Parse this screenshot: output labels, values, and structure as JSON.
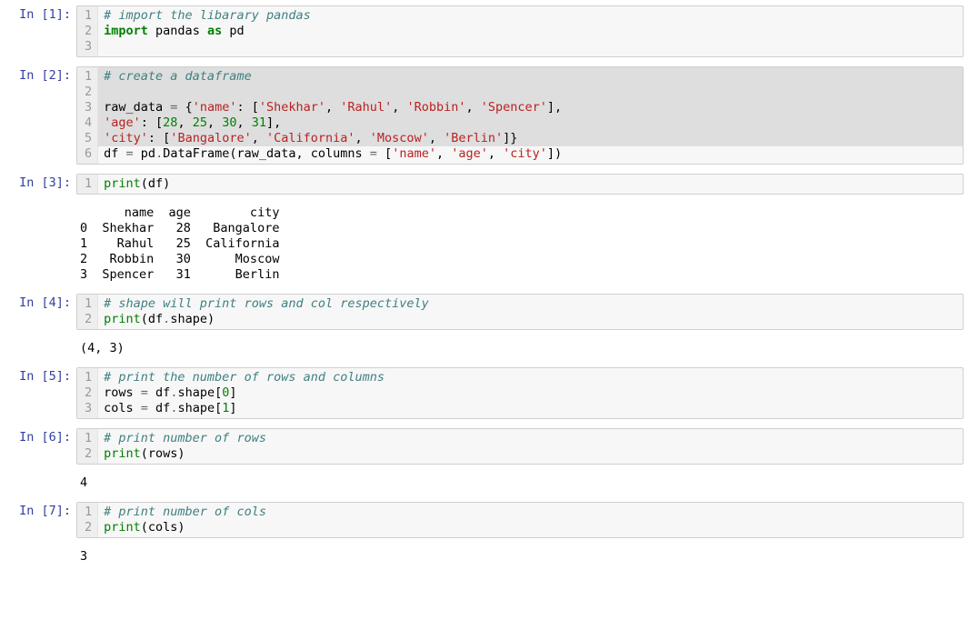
{
  "colors": {
    "prompt": "#303f9f",
    "gutter_bg": "#eeeeee",
    "gutter_fg": "#999999",
    "code_bg": "#f7f7f7",
    "code_bg_selected": "#dedede",
    "border": "#cfcfcf",
    "comment": "#408080",
    "keyword": "#008000",
    "string": "#ba2121",
    "number": "#008000"
  },
  "cells": [
    {
      "id": "c1",
      "prompt": "In [1]:",
      "selected": false,
      "gutter": [
        "1",
        "2",
        "3"
      ],
      "tokens": [
        [
          [
            "cm",
            "# import the libarary pandas"
          ]
        ],
        [
          [
            "kw",
            "import"
          ],
          [
            "nn",
            " pandas "
          ],
          [
            "kw",
            "as"
          ],
          [
            "nn",
            " pd"
          ]
        ],
        [
          [
            "nn",
            ""
          ]
        ]
      ]
    },
    {
      "id": "c2",
      "prompt": "In [2]:",
      "selected": true,
      "gutter": [
        "1",
        "2",
        "3",
        "4",
        "5",
        "6"
      ],
      "last_unselected": true,
      "tokens": [
        [
          [
            "cm",
            "# create a dataframe"
          ]
        ],
        [
          [
            "nn",
            ""
          ]
        ],
        [
          [
            "nn",
            "raw_data "
          ],
          [
            "op",
            "="
          ],
          [
            "nn",
            " {"
          ],
          [
            "str",
            "'name'"
          ],
          [
            "nn",
            ": ["
          ],
          [
            "str",
            "'Shekhar'"
          ],
          [
            "nn",
            ", "
          ],
          [
            "str",
            "'Rahul'"
          ],
          [
            "nn",
            ", "
          ],
          [
            "str",
            "'Robbin'"
          ],
          [
            "nn",
            ", "
          ],
          [
            "str",
            "'Spencer'"
          ],
          [
            "nn",
            "],"
          ]
        ],
        [
          [
            "str",
            "'age'"
          ],
          [
            "nn",
            ": ["
          ],
          [
            "num",
            "28"
          ],
          [
            "nn",
            ", "
          ],
          [
            "num",
            "25"
          ],
          [
            "nn",
            ", "
          ],
          [
            "num",
            "30"
          ],
          [
            "nn",
            ", "
          ],
          [
            "num",
            "31"
          ],
          [
            "nn",
            "],"
          ]
        ],
        [
          [
            "str",
            "'city'"
          ],
          [
            "nn",
            ": ["
          ],
          [
            "str",
            "'Bangalore'"
          ],
          [
            "nn",
            ", "
          ],
          [
            "str",
            "'California'"
          ],
          [
            "nn",
            ", "
          ],
          [
            "str",
            "'Moscow'"
          ],
          [
            "nn",
            ", "
          ],
          [
            "str",
            "'Berlin'"
          ],
          [
            "nn",
            "]}"
          ]
        ],
        [
          [
            "nn",
            "df "
          ],
          [
            "op",
            "="
          ],
          [
            "nn",
            " pd"
          ],
          [
            "op",
            "."
          ],
          [
            "nn",
            "DataFrame(raw_data, columns "
          ],
          [
            "op",
            "="
          ],
          [
            "nn",
            " ["
          ],
          [
            "str",
            "'name'"
          ],
          [
            "nn",
            ", "
          ],
          [
            "str",
            "'age'"
          ],
          [
            "nn",
            ", "
          ],
          [
            "str",
            "'city'"
          ],
          [
            "nn",
            "])"
          ]
        ]
      ]
    },
    {
      "id": "c3",
      "prompt": "In [3]:",
      "selected": false,
      "gutter": [
        "1"
      ],
      "tokens": [
        [
          [
            "fn",
            "print"
          ],
          [
            "nn",
            "(df)"
          ]
        ]
      ],
      "output": "      name  age        city\n0  Shekhar   28   Bangalore\n1    Rahul   25  California\n2   Robbin   30      Moscow\n3  Spencer   31      Berlin"
    },
    {
      "id": "c4",
      "prompt": "In [4]:",
      "selected": false,
      "gutter": [
        "1",
        "2"
      ],
      "tokens": [
        [
          [
            "cm",
            "# shape will print rows and col respectively"
          ]
        ],
        [
          [
            "fn",
            "print"
          ],
          [
            "nn",
            "(df"
          ],
          [
            "op",
            "."
          ],
          [
            "nn",
            "shape)"
          ]
        ]
      ],
      "output": "(4, 3)"
    },
    {
      "id": "c5",
      "prompt": "In [5]:",
      "selected": false,
      "gutter": [
        "1",
        "2",
        "3"
      ],
      "tokens": [
        [
          [
            "cm",
            "# print the number of rows and columns"
          ]
        ],
        [
          [
            "nn",
            "rows "
          ],
          [
            "op",
            "="
          ],
          [
            "nn",
            " df"
          ],
          [
            "op",
            "."
          ],
          [
            "nn",
            "shape["
          ],
          [
            "num",
            "0"
          ],
          [
            "nn",
            "]"
          ]
        ],
        [
          [
            "nn",
            "cols "
          ],
          [
            "op",
            "="
          ],
          [
            "nn",
            " df"
          ],
          [
            "op",
            "."
          ],
          [
            "nn",
            "shape["
          ],
          [
            "num",
            "1"
          ],
          [
            "nn",
            "]"
          ]
        ]
      ]
    },
    {
      "id": "c6",
      "prompt": "In [6]:",
      "selected": false,
      "gutter": [
        "1",
        "2"
      ],
      "tokens": [
        [
          [
            "cm",
            "# print number of rows"
          ]
        ],
        [
          [
            "fn",
            "print"
          ],
          [
            "nn",
            "(rows)"
          ]
        ]
      ],
      "output": "4"
    },
    {
      "id": "c7",
      "prompt": "In [7]:",
      "selected": false,
      "gutter": [
        "1",
        "2"
      ],
      "tokens": [
        [
          [
            "cm",
            "# print number of cols"
          ]
        ],
        [
          [
            "fn",
            "print"
          ],
          [
            "nn",
            "(cols)"
          ]
        ]
      ],
      "output": "3"
    }
  ]
}
